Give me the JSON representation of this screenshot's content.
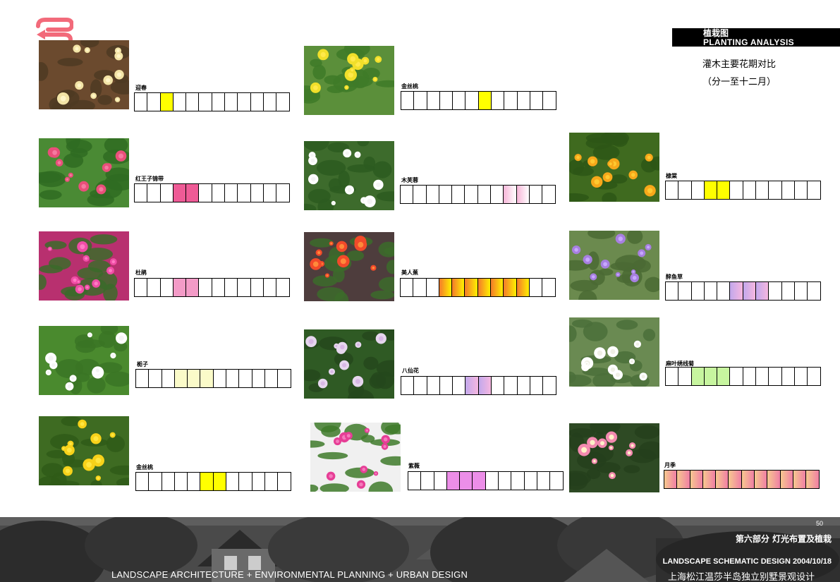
{
  "header": {
    "title_cn": "植栽图",
    "title_en": "PLANTING ANALYSIS",
    "subtitle_line1": "灌木主要花期对比",
    "subtitle_line2": "（分一至十二月）"
  },
  "colors": {
    "yellow": "#ffff00",
    "pink": "#ee5b96",
    "light_pink": "#f39bc7",
    "pale_yellow": "#fbfbc9",
    "lavender": "#c9a8e8",
    "light_green": "#c7f59f",
    "violet_pink": "#ec8ee8",
    "orange_gradient": "linear-gradient(90deg,#f47a2a,#fff000)",
    "soft_pink_gradient": "linear-gradient(90deg,#f7b6d8,#ffffff)",
    "lilac_gradient": "linear-gradient(90deg,#c2a8ec,#f6b7e0)",
    "rose_gradient": "linear-gradient(90deg,#f7c88f,#f07fa4)"
  },
  "plants": [
    {
      "name": "迎春",
      "photo_icon": "yellow-flower-cluster-photo",
      "highlight": [
        3
      ],
      "color": "#ffff00"
    },
    {
      "name": "金丝桃",
      "photo_icon": "yellow-shrub-photo",
      "highlight": [
        7
      ],
      "color": "#ffff00"
    },
    {
      "name": "红王子锦带",
      "photo_icon": "red-flower-photo",
      "highlight": [
        4,
        5
      ],
      "color": "#ee5b96"
    },
    {
      "name": "木芙蓉",
      "photo_icon": "white-flower-photo",
      "highlight": [
        9,
        10
      ],
      "color": "linear-gradient(90deg,#f7b6d8,#ffffff)"
    },
    {
      "name": "棣棠",
      "photo_icon": "yellow-double-flower-photo",
      "highlight": [
        4,
        5
      ],
      "color": "#ffff00"
    },
    {
      "name": "杜鹃",
      "photo_icon": "magenta-azalea-photo",
      "highlight": [
        4,
        5
      ],
      "color": "#f39bc7"
    },
    {
      "name": "美人蕉",
      "photo_icon": "canna-photo",
      "highlight": [
        4,
        5,
        6,
        7,
        8,
        9,
        10
      ],
      "color": "linear-gradient(90deg,#f47a2a,#fff000)"
    },
    {
      "name": "醉鱼草",
      "photo_icon": "purple-flower-photo",
      "highlight": [
        6,
        7,
        8
      ],
      "color": "linear-gradient(90deg,#c2a8ec,#f6b7e0)"
    },
    {
      "name": "栀子",
      "photo_icon": "white-gardenia-photo",
      "highlight": [
        4,
        5,
        6
      ],
      "color": "#fbfbc9"
    },
    {
      "name": "八仙花",
      "photo_icon": "hydrangea-photo",
      "highlight": [
        6,
        7
      ],
      "color": "linear-gradient(90deg,#c2a8ec,#f6b7e0)"
    },
    {
      "name": "麻叶绣线菊",
      "photo_icon": "white-spirea-photo",
      "highlight": [
        3,
        4,
        5
      ],
      "color": "#c7f59f"
    },
    {
      "name": "金丝桃",
      "photo_icon": "yellow-hypericum-photo",
      "highlight": [
        6,
        7
      ],
      "color": "#ffff00"
    },
    {
      "name": "紫薇",
      "photo_icon": "pink-crape-myrtle-photo",
      "highlight": [
        4,
        5,
        6
      ],
      "color": "#ec8ee8"
    },
    {
      "name": "月季",
      "photo_icon": "rose-photo",
      "highlight": [
        1,
        2,
        3,
        4,
        5,
        6,
        7,
        8,
        9,
        10,
        11,
        12
      ],
      "color": "linear-gradient(90deg,#f7c88f,#f07fa4)"
    }
  ],
  "footer": {
    "page_number": "50",
    "part": "第六部分  灯光布置及植栽",
    "design_line": "LANDSCAPE SCHEMATIC DESIGN 2004/10/18",
    "project": "上海松江温莎半岛独立别墅景观设计",
    "disciplines": "LANDSCAPE ARCHITECTURE + ENVIRONMENTAL PLANNING + URBAN DESIGN"
  }
}
